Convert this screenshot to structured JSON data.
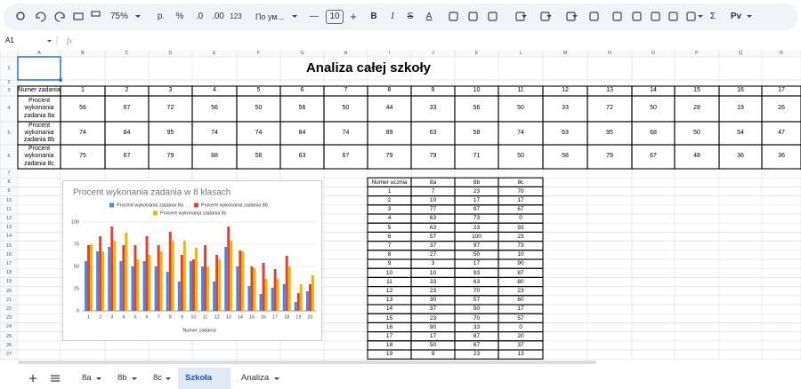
{
  "toolbar": {
    "zoom": "75%",
    "currency": "р.",
    "percent": "%",
    "dec_decrease": ".0",
    "dec_increase": ".00",
    "number_format": "123",
    "font": "По ум...",
    "font_size": "10",
    "minus": "—",
    "plus": "+",
    "bold": "B",
    "italic": "I",
    "strike": "S",
    "text_color": "A",
    "sum": "Σ",
    "script": "Pv"
  },
  "name_box": "A1",
  "fx": "fx",
  "columns": [
    "A",
    "B",
    "C",
    "D",
    "E",
    "F",
    "G",
    "H",
    "I",
    "J",
    "K",
    "L",
    "M",
    "N",
    "O",
    "P",
    "Q",
    "R"
  ],
  "row_numbers": [
    1,
    2,
    3,
    4,
    5,
    6,
    7,
    8,
    9,
    10,
    11,
    12,
    13,
    14,
    15,
    16,
    17,
    18,
    19,
    20,
    21,
    22,
    23,
    24,
    25,
    26,
    27
  ],
  "sheet": {
    "title": "Analiza całej szkoły",
    "tasks_header": "Numer zadania",
    "task_numbers": [
      1,
      2,
      3,
      4,
      5,
      6,
      7,
      8,
      9,
      10,
      11,
      12,
      13,
      14,
      15,
      16,
      17
    ],
    "rows": [
      {
        "label": "Procent wykonania zadania 8a",
        "values": [
          56,
          67,
          72,
          56,
          50,
          56,
          50,
          44,
          33,
          56,
          50,
          33,
          72,
          50,
          28,
          19,
          26
        ]
      },
      {
        "label": "Procent wykonania zadania 8b",
        "values": [
          74,
          84,
          95,
          74,
          74,
          84,
          74,
          89,
          63,
          58,
          74,
          63,
          95,
          68,
          50,
          54,
          47
        ]
      },
      {
        "label": "Procent wykonania zadania 8c",
        "values": [
          75,
          67,
          79,
          88,
          58,
          63,
          67,
          79,
          79,
          71,
          50,
          58,
          79,
          67,
          48,
          36,
          36
        ]
      }
    ]
  },
  "students": {
    "header": [
      "Numer ucznia",
      "8a",
      "8b",
      "8c"
    ],
    "rows": [
      [
        1,
        7,
        23,
        70
      ],
      [
        2,
        10,
        17,
        17
      ],
      [
        3,
        77,
        97,
        67
      ],
      [
        4,
        63,
        73,
        0
      ],
      [
        5,
        63,
        23,
        93
      ],
      [
        6,
        57,
        100,
        23
      ],
      [
        7,
        37,
        97,
        73
      ],
      [
        8,
        27,
        50,
        10
      ],
      [
        9,
        3,
        17,
        90
      ],
      [
        10,
        10,
        93,
        87
      ],
      [
        11,
        33,
        63,
        80
      ],
      [
        12,
        23,
        70,
        23
      ],
      [
        13,
        30,
        57,
        60
      ],
      [
        14,
        37,
        50,
        17
      ],
      [
        15,
        23,
        70,
        57
      ],
      [
        16,
        90,
        33,
        0
      ],
      [
        17,
        17,
        87,
        20
      ],
      [
        18,
        50,
        67,
        37
      ],
      [
        19,
        9,
        23,
        13
      ]
    ]
  },
  "chart_data": {
    "type": "bar",
    "title": "Procent wykonania zadania w 8 klasach",
    "x_label": "Numer zadania",
    "categories": [
      "1",
      "2",
      "3",
      "4",
      "5",
      "6",
      "7",
      "8",
      "9",
      "10",
      "11",
      "12",
      "13",
      "14",
      "15",
      "16",
      "17",
      "18",
      "19",
      "20"
    ],
    "series": [
      {
        "name": "Procent wykonania zadania 8a",
        "color": "#4285f4",
        "values": [
          56,
          67,
          72,
          56,
          50,
          56,
          50,
          44,
          33,
          56,
          50,
          33,
          72,
          50,
          28,
          19,
          26,
          30,
          10,
          22
        ]
      },
      {
        "name": "Procent wykonania zadania 8b",
        "color": "#db4437",
        "values": [
          74,
          84,
          95,
          74,
          74,
          84,
          74,
          89,
          63,
          58,
          74,
          63,
          95,
          68,
          50,
          54,
          47,
          62,
          20,
          30
        ]
      },
      {
        "name": "Procent wykonania zadania 8c",
        "color": "#f4b400",
        "values": [
          75,
          67,
          79,
          88,
          58,
          63,
          67,
          79,
          79,
          71,
          50,
          58,
          79,
          67,
          48,
          36,
          36,
          50,
          30,
          40
        ]
      }
    ],
    "ylim": [
      0,
      100
    ],
    "yticks": [
      0,
      25,
      50,
      75,
      100
    ],
    "grid": true,
    "legend": "top"
  },
  "tabs": [
    "8a",
    "8b",
    "8c",
    "Szkoła",
    "Analiza"
  ],
  "active_tab": 3
}
